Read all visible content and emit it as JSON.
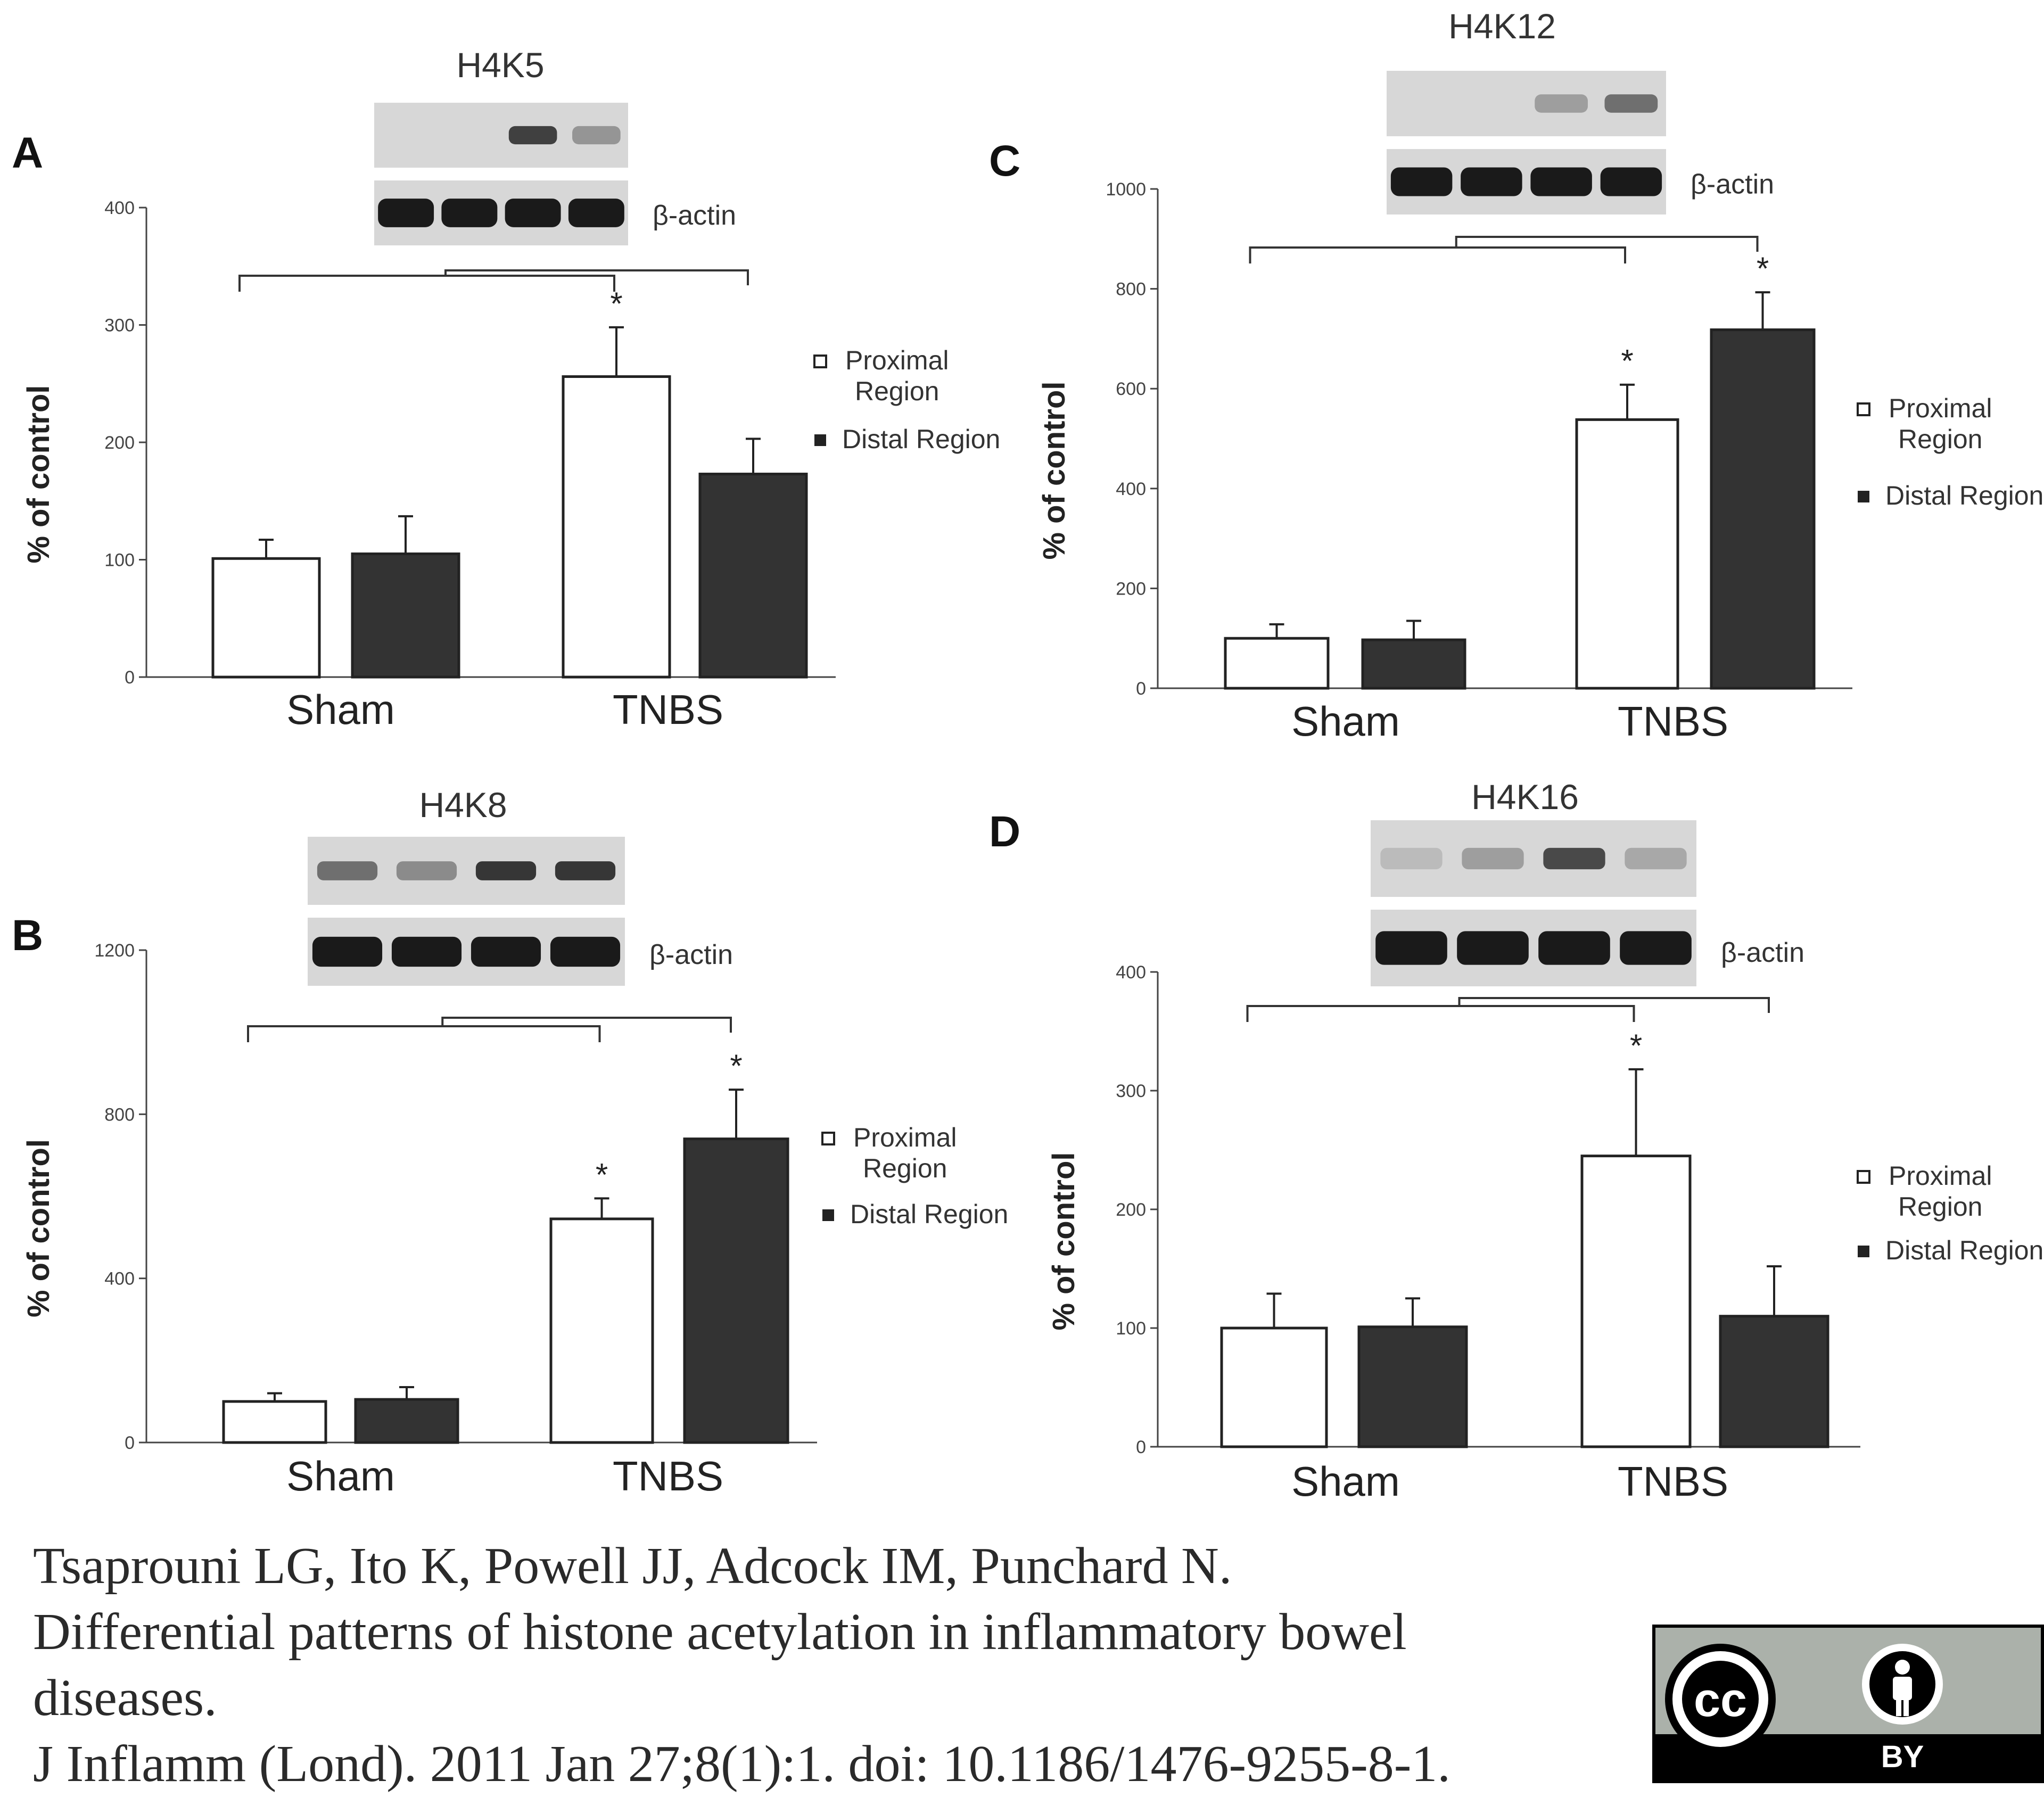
{
  "figure": {
    "legend_labels": {
      "proximal": [
        "Proximal",
        "Region"
      ],
      "distal": "Distal Region"
    },
    "blot_reference_label": "β-actin",
    "colors": {
      "proximal_fill": "#ffffff",
      "distal_fill": "#333333",
      "axis": "#444444",
      "blot_background": "#d7d7d7",
      "band": "#1a1a1a"
    }
  },
  "chart_data": [
    {
      "panel": "A",
      "type": "bar",
      "title": "H4K5",
      "categories": [
        "Sham",
        "TNBS"
      ],
      "series": [
        {
          "name": "Proximal Region",
          "values": [
            101,
            256
          ],
          "errors": [
            16,
            42
          ]
        },
        {
          "name": "Distal Region",
          "values": [
            105,
            173
          ],
          "errors": [
            32,
            30
          ]
        }
      ],
      "ylabel": "% of control",
      "ylim": [
        0,
        400
      ],
      "yticks": [
        "0",
        "100",
        "200",
        "300",
        "400"
      ],
      "significance": [
        false,
        false,
        true,
        false
      ],
      "blot_intensity": [
        0.0,
        0.0,
        0.8,
        0.35
      ]
    },
    {
      "panel": "B",
      "type": "bar",
      "title": "H4K8",
      "categories": [
        "Sham",
        "TNBS"
      ],
      "series": [
        {
          "name": "Proximal Region",
          "values": [
            100,
            545
          ],
          "errors": [
            20,
            50
          ]
        },
        {
          "name": "Distal Region",
          "values": [
            105,
            740
          ],
          "errors": [
            30,
            120
          ]
        }
      ],
      "ylabel": "% of control",
      "ylim": [
        0,
        1200
      ],
      "yticks": [
        "0",
        "400",
        "800",
        "1200"
      ],
      "significance": [
        false,
        false,
        true,
        true
      ],
      "blot_intensity": [
        0.55,
        0.4,
        0.85,
        0.85
      ]
    },
    {
      "panel": "C",
      "type": "bar",
      "title": "H4K12",
      "categories": [
        "Sham",
        "TNBS"
      ],
      "series": [
        {
          "name": "Proximal Region",
          "values": [
            100,
            538
          ],
          "errors": [
            28,
            70
          ]
        },
        {
          "name": "Distal Region",
          "values": [
            97,
            718
          ],
          "errors": [
            38,
            75
          ]
        }
      ],
      "ylabel": "% of control",
      "ylim": [
        0,
        1000
      ],
      "yticks": [
        "0",
        "200",
        "400",
        "600",
        "800",
        "1000"
      ],
      "significance": [
        false,
        false,
        true,
        true
      ],
      "blot_intensity": [
        0.0,
        0.0,
        0.3,
        0.55
      ]
    },
    {
      "panel": "D",
      "type": "bar",
      "title": "H4K16",
      "categories": [
        "Sham",
        "TNBS"
      ],
      "series": [
        {
          "name": "Proximal Region",
          "values": [
            100,
            245
          ],
          "errors": [
            29,
            73
          ]
        },
        {
          "name": "Distal Region",
          "values": [
            101,
            110
          ],
          "errors": [
            24,
            42
          ]
        }
      ],
      "ylabel": "% of control",
      "ylim": [
        0,
        400
      ],
      "yticks": [
        "0",
        "100",
        "200",
        "300",
        "400"
      ],
      "significance": [
        false,
        false,
        true,
        false
      ],
      "blot_intensity": [
        0.15,
        0.3,
        0.75,
        0.25
      ]
    }
  ],
  "citation": {
    "authors": "Tsaprouni LG, Ito K, Powell JJ, Adcock IM, Punchard N.",
    "title_line1": "Differential patterns of histone acetylation in inflammatory bowel",
    "title_line2": "diseases.",
    "reference": "J Inflamm (Lond). 2011 Jan 27;8(1):1. doi: 10.1186/1476-9255-8-1."
  },
  "license": {
    "mark": "cc",
    "label": "BY"
  }
}
